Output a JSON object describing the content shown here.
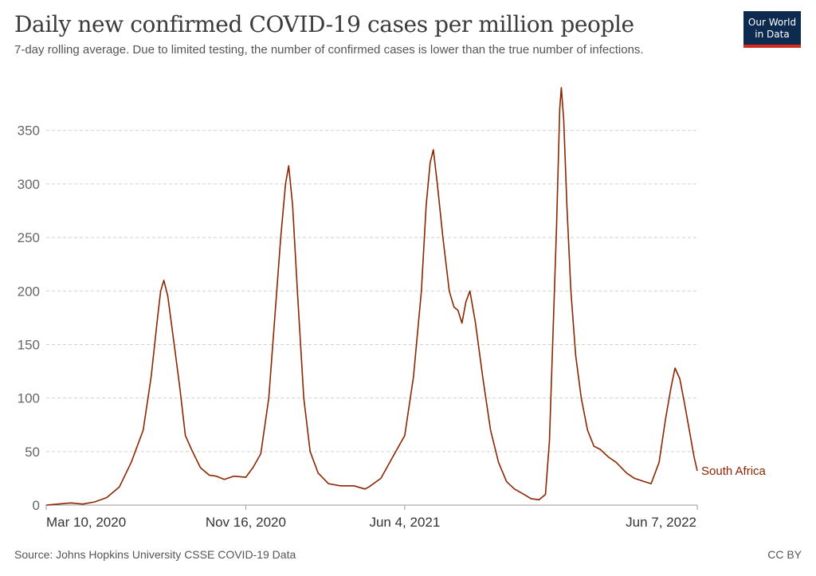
{
  "header": {
    "title": "Daily new confirmed COVID-19 cases per million people",
    "subtitle": "7-day rolling average. Due to limited testing, the number of confirmed cases is lower than the true number of infections.",
    "logo_line1": "Our World",
    "logo_line2": "in Data"
  },
  "footer": {
    "source": "Source: Johns Hopkins University CSSE COVID-19 Data",
    "license": "CC BY"
  },
  "colors": {
    "series": "#8b2500",
    "grid": "#d0d0d0",
    "logo_bg": "#0d2a4f",
    "logo_accent": "#d42b21"
  },
  "chart_data": {
    "type": "line",
    "title": "Daily new confirmed COVID-19 cases per million people",
    "subtitle": "7-day rolling average. Due to limited testing, the number of confirmed cases is lower than the true number of infections.",
    "xlabel": "",
    "ylabel": "",
    "ylim": [
      0,
      390
    ],
    "yticks": [
      0,
      50,
      100,
      150,
      200,
      250,
      300,
      350
    ],
    "xlim": [
      "2020-03-10",
      "2022-06-07"
    ],
    "xticks": [
      {
        "date": "2020-03-10",
        "label": "Mar 10, 2020"
      },
      {
        "date": "2020-11-16",
        "label": "Nov 16, 2020"
      },
      {
        "date": "2021-06-04",
        "label": "Jun 4, 2021"
      },
      {
        "date": "2022-06-07",
        "label": "Jun 7, 2022"
      }
    ],
    "grid": "horizontal dashed",
    "series": [
      {
        "name": "South Africa",
        "points": [
          [
            "2020-03-10",
            0
          ],
          [
            "2020-03-25",
            1
          ],
          [
            "2020-04-10",
            2
          ],
          [
            "2020-04-25",
            1
          ],
          [
            "2020-05-10",
            3
          ],
          [
            "2020-05-25",
            7
          ],
          [
            "2020-06-10",
            17
          ],
          [
            "2020-06-25",
            40
          ],
          [
            "2020-07-05",
            60
          ],
          [
            "2020-07-10",
            70
          ],
          [
            "2020-07-20",
            120
          ],
          [
            "2020-07-28",
            175
          ],
          [
            "2020-08-01",
            200
          ],
          [
            "2020-08-05",
            210
          ],
          [
            "2020-08-10",
            195
          ],
          [
            "2020-08-18",
            150
          ],
          [
            "2020-08-25",
            110
          ],
          [
            "2020-09-01",
            65
          ],
          [
            "2020-09-10",
            50
          ],
          [
            "2020-09-20",
            35
          ],
          [
            "2020-10-01",
            28
          ],
          [
            "2020-10-10",
            27
          ],
          [
            "2020-10-20",
            24
          ],
          [
            "2020-11-01",
            27
          ],
          [
            "2020-11-16",
            26
          ],
          [
            "2020-11-25",
            35
          ],
          [
            "2020-12-05",
            48
          ],
          [
            "2020-12-15",
            100
          ],
          [
            "2020-12-24",
            190
          ],
          [
            "2020-12-30",
            250
          ],
          [
            "2021-01-05",
            300
          ],
          [
            "2021-01-09",
            317
          ],
          [
            "2021-01-14",
            280
          ],
          [
            "2021-01-20",
            200
          ],
          [
            "2021-01-28",
            100
          ],
          [
            "2021-02-05",
            50
          ],
          [
            "2021-02-15",
            30
          ],
          [
            "2021-02-28",
            20
          ],
          [
            "2021-03-15",
            18
          ],
          [
            "2021-04-01",
            18
          ],
          [
            "2021-04-15",
            15
          ],
          [
            "2021-04-20",
            17
          ],
          [
            "2021-05-05",
            25
          ],
          [
            "2021-05-20",
            45
          ],
          [
            "2021-06-04",
            65
          ],
          [
            "2021-06-15",
            120
          ],
          [
            "2021-06-25",
            200
          ],
          [
            "2021-07-01",
            280
          ],
          [
            "2021-07-06",
            320
          ],
          [
            "2021-07-10",
            332
          ],
          [
            "2021-07-15",
            300
          ],
          [
            "2021-07-22",
            250
          ],
          [
            "2021-07-30",
            200
          ],
          [
            "2021-08-05",
            185
          ],
          [
            "2021-08-10",
            182
          ],
          [
            "2021-08-15",
            170
          ],
          [
            "2021-08-20",
            190
          ],
          [
            "2021-08-25",
            200
          ],
          [
            "2021-09-01",
            170
          ],
          [
            "2021-09-10",
            120
          ],
          [
            "2021-09-20",
            70
          ],
          [
            "2021-09-30",
            40
          ],
          [
            "2021-10-10",
            22
          ],
          [
            "2021-10-20",
            15
          ],
          [
            "2021-11-01",
            10
          ],
          [
            "2021-11-10",
            6
          ],
          [
            "2021-11-20",
            5
          ],
          [
            "2021-11-28",
            10
          ],
          [
            "2021-12-03",
            60
          ],
          [
            "2021-12-08",
            170
          ],
          [
            "2021-12-12",
            260
          ],
          [
            "2021-12-16",
            370
          ],
          [
            "2021-12-18",
            390
          ],
          [
            "2021-12-21",
            360
          ],
          [
            "2021-12-25",
            280
          ],
          [
            "2021-12-30",
            200
          ],
          [
            "2022-01-05",
            140
          ],
          [
            "2022-01-12",
            100
          ],
          [
            "2022-01-20",
            70
          ],
          [
            "2022-01-28",
            55
          ],
          [
            "2022-02-05",
            52
          ],
          [
            "2022-02-15",
            45
          ],
          [
            "2022-02-25",
            40
          ],
          [
            "2022-03-10",
            30
          ],
          [
            "2022-03-20",
            25
          ],
          [
            "2022-04-01",
            22
          ],
          [
            "2022-04-10",
            20
          ],
          [
            "2022-04-20",
            40
          ],
          [
            "2022-04-28",
            80
          ],
          [
            "2022-05-05",
            110
          ],
          [
            "2022-05-10",
            128
          ],
          [
            "2022-05-16",
            118
          ],
          [
            "2022-05-22",
            95
          ],
          [
            "2022-05-28",
            70
          ],
          [
            "2022-06-03",
            45
          ],
          [
            "2022-06-07",
            32
          ]
        ]
      }
    ]
  }
}
